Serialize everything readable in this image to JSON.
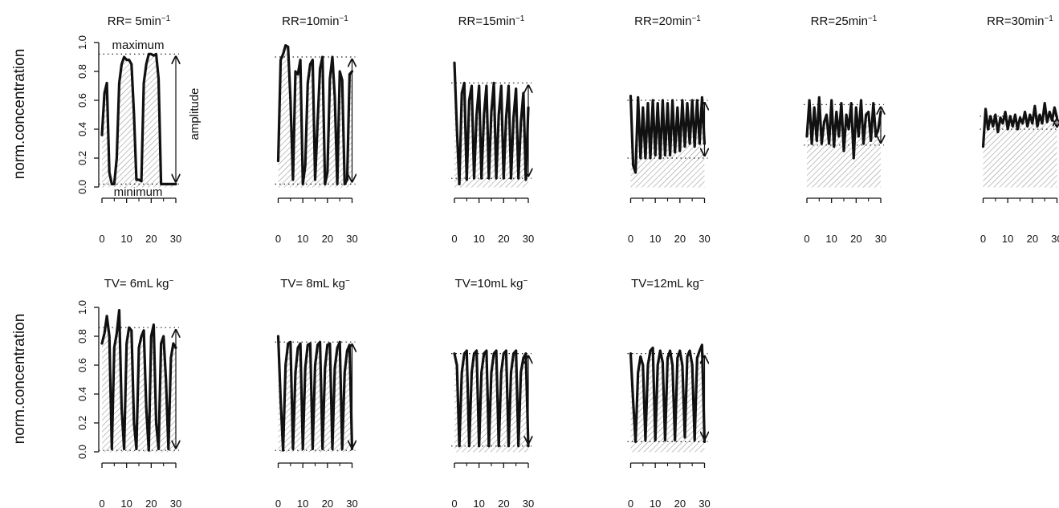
{
  "figure": {
    "row_ylabel": "norm.concentration",
    "annotations": {
      "maximum": "maximum",
      "minimum": "minimum",
      "amplitude": "amplitude"
    }
  },
  "chart_data": [
    {
      "type": "line",
      "title_main": "RR= 5min",
      "title_sup": "−1",
      "x_ticks": [
        0,
        10,
        20,
        30
      ],
      "y_ticks": [
        "0.0",
        "0.2",
        "0.4",
        "0.6",
        "0.8",
        "1.0"
      ],
      "xlim": [
        0,
        30
      ],
      "ylim": [
        0,
        1
      ],
      "y_axis_shown": true,
      "annotated": true,
      "max_level": 0.92,
      "min_level": 0.02,
      "x": [
        0,
        1,
        2,
        3,
        4,
        5,
        6,
        7,
        8,
        9,
        10,
        11,
        12,
        13,
        14,
        15,
        16,
        17,
        18,
        19,
        20,
        21,
        22,
        23,
        24,
        25,
        26,
        27,
        28,
        29,
        30
      ],
      "y": [
        0.36,
        0.65,
        0.72,
        0.1,
        0.02,
        0.02,
        0.2,
        0.72,
        0.85,
        0.9,
        0.88,
        0.88,
        0.85,
        0.5,
        0.05,
        0.05,
        0.04,
        0.72,
        0.85,
        0.92,
        0.92,
        0.91,
        0.92,
        0.75,
        0.02,
        0.02,
        0.02,
        0.02,
        0.02,
        0.02,
        0.02
      ]
    },
    {
      "type": "line",
      "title_main": "RR=10min",
      "title_sup": "−1",
      "x_ticks": [
        0,
        10,
        20,
        30
      ],
      "xlim": [
        0,
        30
      ],
      "ylim": [
        0,
        1
      ],
      "y_axis_shown": false,
      "annotated": false,
      "max_level": 0.9,
      "min_level": 0.02,
      "x": [
        0,
        1,
        2,
        3,
        4,
        5,
        6,
        7,
        8,
        9,
        10,
        11,
        12,
        13,
        14,
        15,
        16,
        17,
        18,
        19,
        20,
        21,
        22,
        23,
        24,
        25,
        26,
        27,
        28,
        29,
        30
      ],
      "y": [
        0.18,
        0.88,
        0.92,
        0.98,
        0.97,
        0.6,
        0.05,
        0.8,
        0.78,
        0.88,
        0.02,
        0.15,
        0.72,
        0.85,
        0.88,
        0.05,
        0.45,
        0.82,
        0.9,
        0.02,
        0.1,
        0.75,
        0.9,
        0.62,
        0.02,
        0.8,
        0.74,
        0.02,
        0.05,
        0.78,
        0.8
      ]
    },
    {
      "type": "line",
      "title_main": "RR=15min",
      "title_sup": "−1",
      "x_ticks": [
        0,
        10,
        20,
        30
      ],
      "xlim": [
        0,
        30
      ],
      "ylim": [
        0,
        1
      ],
      "y_axis_shown": false,
      "annotated": false,
      "max_level": 0.72,
      "min_level": 0.06,
      "x": [
        0,
        1,
        2,
        3,
        4,
        5,
        6,
        7,
        8,
        9,
        10,
        11,
        12,
        13,
        14,
        15,
        16,
        17,
        18,
        19,
        20,
        21,
        22,
        23,
        24,
        25,
        26,
        27,
        28,
        29,
        30
      ],
      "y": [
        0.86,
        0.4,
        0.02,
        0.65,
        0.72,
        0.05,
        0.6,
        0.7,
        0.06,
        0.5,
        0.7,
        0.06,
        0.5,
        0.7,
        0.06,
        0.52,
        0.72,
        0.06,
        0.5,
        0.7,
        0.06,
        0.48,
        0.7,
        0.06,
        0.48,
        0.68,
        0.06,
        0.45,
        0.65,
        0.05,
        0.55
      ]
    },
    {
      "type": "line",
      "title_main": "RR=20min",
      "title_sup": "−1",
      "x_ticks": [
        0,
        10,
        20,
        30
      ],
      "xlim": [
        0,
        30
      ],
      "ylim": [
        0,
        1
      ],
      "y_axis_shown": false,
      "annotated": false,
      "max_level": 0.6,
      "min_level": 0.2,
      "x": [
        0,
        1,
        2,
        3,
        4,
        5,
        6,
        7,
        8,
        9,
        10,
        11,
        12,
        13,
        14,
        15,
        16,
        17,
        18,
        19,
        20,
        21,
        22,
        23,
        24,
        25,
        26,
        27,
        28,
        29,
        30
      ],
      "y": [
        0.63,
        0.15,
        0.1,
        0.62,
        0.2,
        0.55,
        0.2,
        0.58,
        0.2,
        0.6,
        0.22,
        0.58,
        0.2,
        0.6,
        0.22,
        0.58,
        0.22,
        0.6,
        0.24,
        0.55,
        0.25,
        0.6,
        0.28,
        0.58,
        0.3,
        0.6,
        0.28,
        0.6,
        0.3,
        0.62,
        0.3
      ]
    },
    {
      "type": "line",
      "title_main": "RR=25min",
      "title_sup": "−1",
      "x_ticks": [
        0,
        10,
        20,
        30
      ],
      "xlim": [
        0,
        30
      ],
      "ylim": [
        0,
        1
      ],
      "y_axis_shown": false,
      "annotated": false,
      "max_level": 0.57,
      "min_level": 0.29,
      "x": [
        0,
        1,
        2,
        3,
        4,
        5,
        6,
        7,
        8,
        9,
        10,
        11,
        12,
        13,
        14,
        15,
        16,
        17,
        18,
        19,
        20,
        21,
        22,
        23,
        24,
        25,
        26,
        27,
        28,
        29,
        30
      ],
      "y": [
        0.35,
        0.6,
        0.3,
        0.55,
        0.32,
        0.62,
        0.3,
        0.45,
        0.5,
        0.3,
        0.6,
        0.28,
        0.52,
        0.35,
        0.58,
        0.25,
        0.5,
        0.4,
        0.58,
        0.2,
        0.55,
        0.35,
        0.6,
        0.3,
        0.5,
        0.52,
        0.32,
        0.58,
        0.35,
        0.4,
        0.52
      ]
    },
    {
      "type": "line",
      "title_main": "RR=30min",
      "title_sup": "−1",
      "x_ticks": [
        0,
        10,
        20,
        30
      ],
      "xlim": [
        0,
        30
      ],
      "ylim": [
        0,
        1
      ],
      "y_axis_shown": false,
      "annotated": false,
      "max_level": 0.49,
      "min_level": 0.4,
      "x": [
        0,
        1,
        2,
        3,
        4,
        5,
        6,
        7,
        8,
        9,
        10,
        11,
        12,
        13,
        14,
        15,
        16,
        17,
        18,
        19,
        20,
        21,
        22,
        23,
        24,
        25,
        26,
        27,
        28,
        29,
        30
      ],
      "y": [
        0.28,
        0.54,
        0.4,
        0.49,
        0.42,
        0.5,
        0.38,
        0.48,
        0.44,
        0.52,
        0.4,
        0.49,
        0.42,
        0.5,
        0.4,
        0.48,
        0.44,
        0.52,
        0.42,
        0.5,
        0.44,
        0.56,
        0.42,
        0.5,
        0.44,
        0.58,
        0.45,
        0.52,
        0.46,
        0.55,
        0.48
      ]
    },
    {
      "type": "line",
      "title_main": "TV= 6mL kg",
      "title_sup": "−",
      "x_ticks": [
        0,
        10,
        20,
        30
      ],
      "y_ticks": [
        "0.0",
        "0.2",
        "0.4",
        "0.6",
        "0.8",
        "1.0"
      ],
      "xlim": [
        0,
        30
      ],
      "ylim": [
        0,
        1
      ],
      "y_axis_shown": true,
      "annotated": false,
      "max_level": 0.86,
      "min_level": 0.01,
      "x": [
        0,
        1,
        2,
        3,
        4,
        5,
        6,
        7,
        8,
        9,
        10,
        11,
        12,
        13,
        14,
        15,
        16,
        17,
        18,
        19,
        20,
        21,
        22,
        23,
        24,
        25,
        26,
        27,
        28,
        29,
        30
      ],
      "y": [
        0.75,
        0.82,
        0.94,
        0.8,
        0.02,
        0.72,
        0.82,
        0.98,
        0.3,
        0.02,
        0.75,
        0.86,
        0.84,
        0.2,
        0.02,
        0.72,
        0.8,
        0.84,
        0.3,
        0.01,
        0.8,
        0.88,
        0.2,
        0.02,
        0.75,
        0.8,
        0.5,
        0.02,
        0.65,
        0.75,
        0.72
      ]
    },
    {
      "type": "line",
      "title_main": "TV= 8mL kg",
      "title_sup": "−",
      "x_ticks": [
        0,
        10,
        20,
        30
      ],
      "xlim": [
        0,
        30
      ],
      "ylim": [
        0,
        1
      ],
      "y_axis_shown": false,
      "annotated": false,
      "max_level": 0.76,
      "min_level": 0.01,
      "x": [
        0,
        1,
        2,
        3,
        4,
        5,
        6,
        7,
        8,
        9,
        10,
        11,
        12,
        13,
        14,
        15,
        16,
        17,
        18,
        19,
        20,
        21,
        22,
        23,
        24,
        25,
        26,
        27,
        28,
        29,
        30
      ],
      "y": [
        0.8,
        0.35,
        0.01,
        0.6,
        0.75,
        0.76,
        0.02,
        0.55,
        0.72,
        0.75,
        0.02,
        0.58,
        0.74,
        0.75,
        0.02,
        0.6,
        0.74,
        0.76,
        0.02,
        0.58,
        0.74,
        0.75,
        0.02,
        0.58,
        0.72,
        0.76,
        0.02,
        0.55,
        0.7,
        0.74,
        0.02
      ]
    },
    {
      "type": "line",
      "title_main": "TV=10mL kg",
      "title_sup": "−",
      "x_ticks": [
        0,
        10,
        20,
        30
      ],
      "xlim": [
        0,
        30
      ],
      "ylim": [
        0,
        1
      ],
      "y_axis_shown": false,
      "annotated": false,
      "max_level": 0.68,
      "min_level": 0.04,
      "x": [
        0,
        1,
        2,
        3,
        4,
        5,
        6,
        7,
        8,
        9,
        10,
        11,
        12,
        13,
        14,
        15,
        16,
        17,
        18,
        19,
        20,
        21,
        22,
        23,
        24,
        25,
        26,
        27,
        28,
        29,
        30
      ],
      "y": [
        0.68,
        0.6,
        0.04,
        0.55,
        0.68,
        0.7,
        0.04,
        0.55,
        0.68,
        0.7,
        0.04,
        0.55,
        0.68,
        0.7,
        0.04,
        0.55,
        0.68,
        0.7,
        0.04,
        0.55,
        0.68,
        0.7,
        0.04,
        0.55,
        0.68,
        0.7,
        0.04,
        0.55,
        0.65,
        0.68,
        0.04
      ]
    },
    {
      "type": "line",
      "title_main": "TV=12mL kg",
      "title_sup": "−",
      "x_ticks": [
        0,
        10,
        20,
        30
      ],
      "xlim": [
        0,
        30
      ],
      "ylim": [
        0,
        1
      ],
      "y_axis_shown": false,
      "annotated": false,
      "max_level": 0.68,
      "min_level": 0.07,
      "x": [
        0,
        1,
        2,
        3,
        4,
        5,
        6,
        7,
        8,
        9,
        10,
        11,
        12,
        13,
        14,
        15,
        16,
        17,
        18,
        19,
        20,
        21,
        22,
        23,
        24,
        25,
        26,
        27,
        28,
        29,
        30
      ],
      "y": [
        0.68,
        0.35,
        0.07,
        0.55,
        0.66,
        0.6,
        0.08,
        0.6,
        0.7,
        0.72,
        0.08,
        0.6,
        0.7,
        0.62,
        0.08,
        0.65,
        0.7,
        0.6,
        0.08,
        0.65,
        0.7,
        0.6,
        0.1,
        0.66,
        0.7,
        0.6,
        0.08,
        0.65,
        0.7,
        0.74,
        0.07
      ]
    }
  ]
}
